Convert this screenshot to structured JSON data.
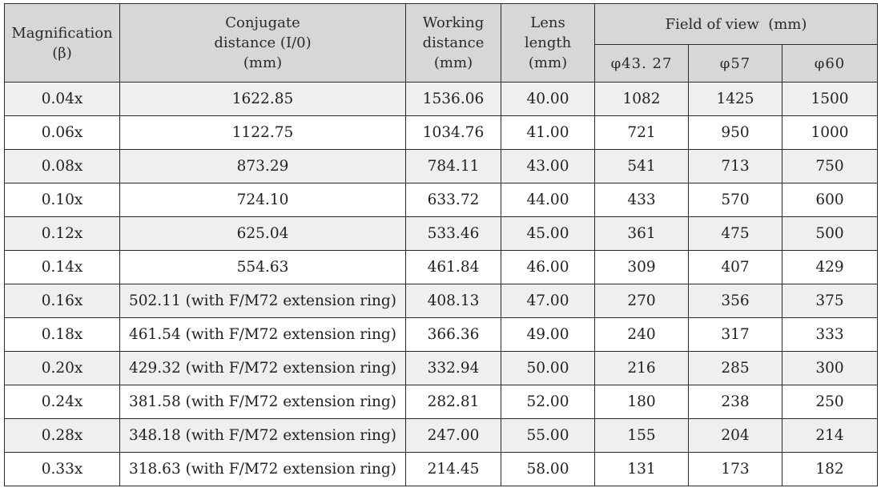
{
  "header": {
    "magnification": [
      "Magnification",
      "(β)"
    ],
    "conjugate": [
      "Conjugate",
      "distance (I/0)",
      "(mm)"
    ],
    "working": [
      "Working",
      "distance",
      "(mm)"
    ],
    "lens_length": [
      "Lens",
      "length",
      "(mm)"
    ],
    "fov_group": "Field of view  (mm)",
    "fov": [
      "φ43. 27",
      "φ57",
      "φ60"
    ]
  },
  "rows": [
    [
      "0.04x",
      "1622.85",
      "1536.06",
      "40.00",
      "1082",
      "1425",
      "1500"
    ],
    [
      "0.06x",
      "1122.75",
      "1034.76",
      "41.00",
      "721",
      "950",
      "1000"
    ],
    [
      "0.08x",
      "873.29",
      "784.11",
      "43.00",
      "541",
      "713",
      "750"
    ],
    [
      "0.10x",
      "724.10",
      "633.72",
      "44.00",
      "433",
      "570",
      "600"
    ],
    [
      "0.12x",
      "625.04",
      "533.46",
      "45.00",
      "361",
      "475",
      "500"
    ],
    [
      "0.14x",
      "554.63",
      "461.84",
      "46.00",
      "309",
      "407",
      "429"
    ],
    [
      "0.16x",
      "502.11 (with F/M72 extension ring)",
      "408.13",
      "47.00",
      "270",
      "356",
      "375"
    ],
    [
      "0.18x",
      "461.54 (with F/M72 extension ring)",
      "366.36",
      "49.00",
      "240",
      "317",
      "333"
    ],
    [
      "0.20x",
      "429.32 (with F/M72 extension ring)",
      "332.94",
      "50.00",
      "216",
      "285",
      "300"
    ],
    [
      "0.24x",
      "381.58 (with F/M72 extension ring)",
      "282.81",
      "52.00",
      "180",
      "238",
      "250"
    ],
    [
      "0.28x",
      "348.18 (with F/M72 extension ring)",
      "247.00",
      "55.00",
      "155",
      "204",
      "214"
    ],
    [
      "0.33x",
      "318.63 (with F/M72 extension ring)",
      "214.45",
      "58.00",
      "131",
      "173",
      "182"
    ]
  ],
  "colors": {
    "header_bg": "#d7d7d7",
    "row_shaded": "#efefef",
    "row_plain": "#ffffff",
    "border": "#2a2a2a",
    "text": "#222222"
  }
}
